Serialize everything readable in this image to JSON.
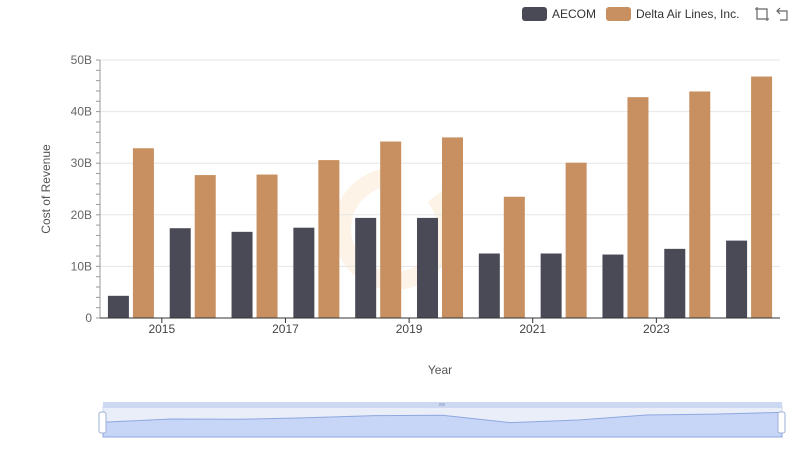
{
  "legend": {
    "items": [
      {
        "name": "AECOM",
        "color": "#4a4a57"
      },
      {
        "name": "Delta Air Lines, Inc.",
        "color": "#c89060"
      }
    ]
  },
  "toolbox": {
    "icons": [
      "zoom-select-icon",
      "zoom-reset-icon"
    ]
  },
  "chart_data": {
    "type": "bar",
    "categories": [
      "2014",
      "2015",
      "2016",
      "2017",
      "2018",
      "2019",
      "2020",
      "2021",
      "2022",
      "2023",
      "2024"
    ],
    "x_tick_labels": [
      "2015",
      "2017",
      "2019",
      "2021",
      "2023"
    ],
    "series": [
      {
        "name": "AECOM",
        "color": "#4a4a57",
        "values": [
          4.3,
          17.4,
          16.7,
          17.5,
          19.4,
          19.4,
          12.5,
          12.5,
          12.3,
          13.4,
          15.0
        ]
      },
      {
        "name": "Delta Air Lines, Inc.",
        "color": "#c89060",
        "values": [
          32.9,
          27.7,
          27.8,
          30.6,
          34.2,
          35.0,
          23.5,
          30.1,
          42.8,
          43.9,
          46.8
        ]
      }
    ],
    "xlabel": "Year",
    "ylabel": "Cost of Revenue",
    "ylim": [
      0,
      50
    ],
    "y_ticks": [
      0,
      10,
      20,
      30,
      40,
      50
    ],
    "y_tick_labels": [
      "0",
      "10B",
      "20B",
      "30B",
      "40B",
      "50B"
    ],
    "grid": true,
    "legend_position": "top-right"
  }
}
